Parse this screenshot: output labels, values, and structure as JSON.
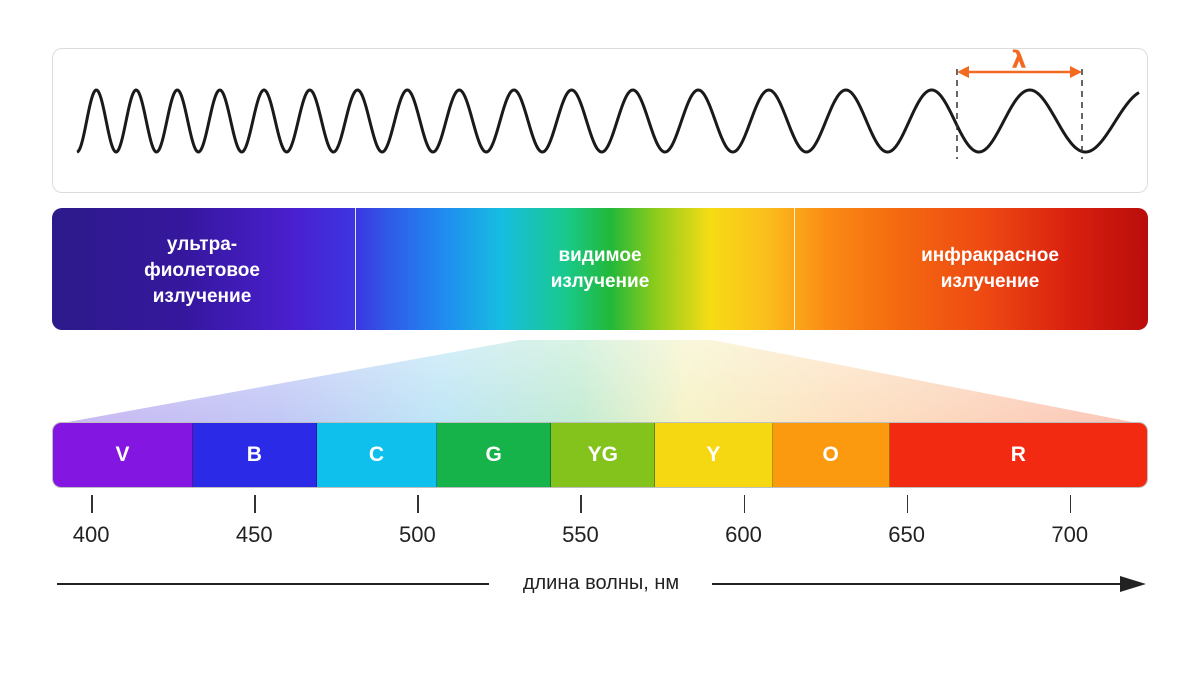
{
  "wavelength_symbol": "λ",
  "bands": [
    {
      "label": "ультра-\nфиолетовое\nизлучение"
    },
    {
      "label": "видимое\nизлучение"
    },
    {
      "label": "инфракрасное\nизлучение"
    }
  ],
  "segments": [
    {
      "label": "V",
      "start": 388,
      "end": 431,
      "color": "#8316e0"
    },
    {
      "label": "B",
      "start": 431,
      "end": 469,
      "color": "#2b2ae6"
    },
    {
      "label": "C",
      "start": 469,
      "end": 506,
      "color": "#0fc0ec"
    },
    {
      "label": "G",
      "start": 506,
      "end": 541,
      "color": "#16b24a"
    },
    {
      "label": "YG",
      "start": 541,
      "end": 573,
      "color": "#84c21c"
    },
    {
      "label": "Y",
      "start": 573,
      "end": 609,
      "color": "#f5d812"
    },
    {
      "label": "O",
      "start": 609,
      "end": 645,
      "color": "#fb9a0f"
    },
    {
      "label": "R",
      "start": 645,
      "end": 724,
      "color": "#f22a12"
    }
  ],
  "ticks": [
    "400",
    "450",
    "500",
    "550",
    "600",
    "650",
    "700"
  ],
  "axis_title": "длина волны, нм",
  "accent_color": "#f26a21"
}
